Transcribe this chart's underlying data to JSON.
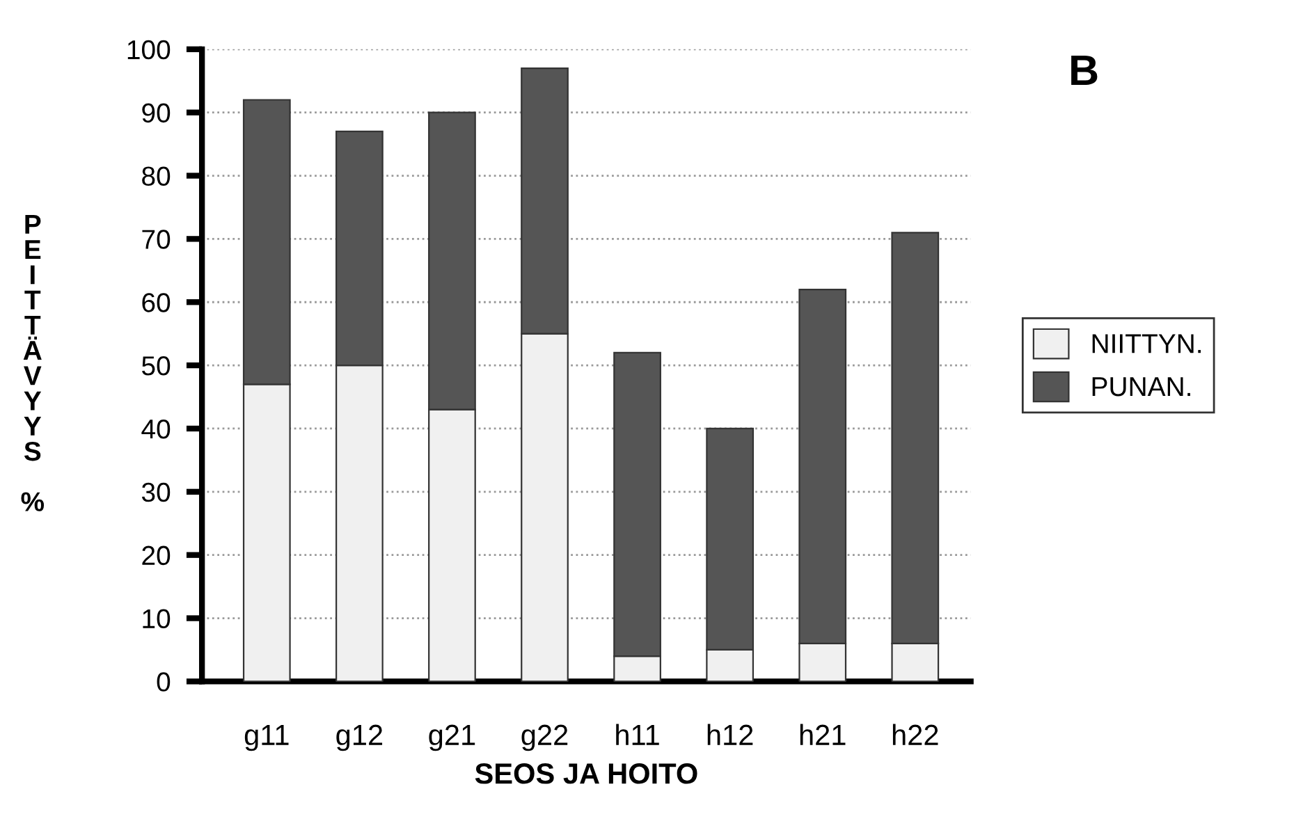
{
  "chart_data": {
    "type": "bar",
    "stacked": true,
    "xlabel": "SEOS JA HOITO",
    "ylabel": "PEITTÄVYYS %",
    "annotations": [
      "B"
    ],
    "categories": [
      "g11",
      "g12",
      "g21",
      "g22",
      "h11",
      "h12",
      "h21",
      "h22"
    ],
    "series": [
      {
        "name": "NIITTYN.",
        "color": "#f0f0f0",
        "values": [
          47,
          50,
          43,
          55,
          4,
          5,
          6,
          6
        ]
      },
      {
        "name": "PUNAN.",
        "color": "#555555",
        "values": [
          45,
          37,
          47,
          42,
          48,
          35,
          56,
          65
        ]
      }
    ],
    "ylim": [
      0,
      100
    ],
    "yticks": [
      0,
      10,
      20,
      30,
      40,
      50,
      60,
      70,
      80,
      90,
      100
    ],
    "grid": "y",
    "legend": "right"
  }
}
